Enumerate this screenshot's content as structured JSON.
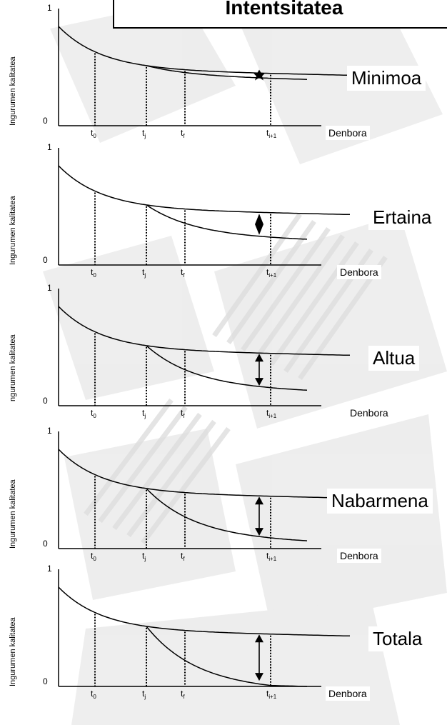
{
  "title": "Intentsitatea",
  "y_axis_label": "Ingurumen kalitatea",
  "y_axis_label_cropped": "ngurumen kalitatea",
  "y_top_tick": "1",
  "y_bottom_tick": "0",
  "x_axis_label": "Denbora",
  "time_marks": [
    {
      "base": "t",
      "sub": "0"
    },
    {
      "base": "t",
      "sub": "j"
    },
    {
      "base": "t",
      "sub": "f"
    },
    {
      "base": "t",
      "sub": "i+1"
    }
  ],
  "panels": [
    {
      "intensity": "Minimoa",
      "impact_fraction": 0.1,
      "ylabel_variant": "full"
    },
    {
      "intensity": "Ertaina",
      "impact_fraction": 0.5,
      "ylabel_variant": "full"
    },
    {
      "intensity": "Altua",
      "impact_fraction": 0.7,
      "ylabel_variant": "cropped"
    },
    {
      "intensity": "Nabarmena",
      "impact_fraction": 0.85,
      "ylabel_variant": "full"
    },
    {
      "intensity": "Totala",
      "impact_fraction": 1.0,
      "ylabel_variant": "full"
    }
  ],
  "colors": {
    "line": "#000000",
    "background_pattern": "#d9d9d9"
  }
}
